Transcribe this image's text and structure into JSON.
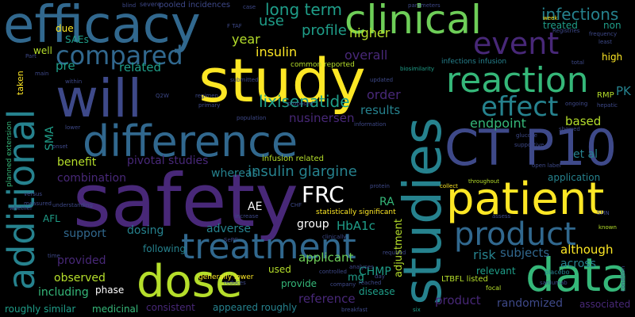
{
  "palette": {
    "yellow": "#fde725",
    "lime": "#b5de2b",
    "green": "#6ece58",
    "seagreen": "#35b779",
    "teal": "#1f9e89",
    "cyan": "#26828e",
    "blue": "#31688e",
    "indigo": "#3e4989",
    "purple": "#482878",
    "violet": "#440154"
  },
  "words": [
    {
      "text": "safety",
      "color": "purple"
    },
    {
      "text": "study",
      "color": "yellow"
    },
    {
      "text": "studies",
      "color": "cyan"
    },
    {
      "text": "efficacy",
      "color": "blue"
    },
    {
      "text": "will",
      "color": "indigo"
    },
    {
      "text": "difference",
      "color": "blue"
    },
    {
      "text": "patient",
      "color": "yellow"
    },
    {
      "text": "CT P10",
      "color": "indigo"
    },
    {
      "text": "clinical",
      "color": "green"
    },
    {
      "text": "dose",
      "color": "lime"
    },
    {
      "text": "data",
      "color": "seagreen"
    },
    {
      "text": "treatment",
      "color": "blue"
    },
    {
      "text": "additional",
      "color": "cyan"
    },
    {
      "text": "reaction",
      "color": "seagreen"
    },
    {
      "text": "event",
      "color": "purple"
    },
    {
      "text": "effect",
      "color": "cyan"
    },
    {
      "text": "product",
      "color": "blue"
    },
    {
      "text": "compared",
      "color": "blue"
    },
    {
      "text": "FRC",
      "color": "white"
    },
    {
      "text": "long term",
      "color": "teal"
    },
    {
      "text": "infections",
      "color": "cyan"
    },
    {
      "text": "lixisenatide",
      "color": "teal"
    },
    {
      "text": "insulin glargine",
      "color": "cyan"
    },
    {
      "text": "insulin",
      "color": "yellow"
    },
    {
      "text": "profile",
      "color": "teal"
    },
    {
      "text": "higher",
      "color": "lime"
    },
    {
      "text": "overall",
      "color": "purple"
    },
    {
      "text": "order",
      "color": "purple"
    },
    {
      "text": "year",
      "color": "lime"
    },
    {
      "text": "use",
      "color": "teal"
    },
    {
      "text": "pre",
      "color": "teal"
    },
    {
      "text": "related",
      "color": "teal"
    },
    {
      "text": "nusinersen",
      "color": "purple"
    },
    {
      "text": "results",
      "color": "cyan"
    },
    {
      "text": "endpoint",
      "color": "seagreen"
    },
    {
      "text": "based",
      "color": "lime"
    },
    {
      "text": "et al",
      "color": "cyan"
    },
    {
      "text": "PK",
      "color": "cyan"
    },
    {
      "text": "RMP",
      "color": "lime"
    },
    {
      "text": "treated",
      "color": "teal"
    },
    {
      "text": "non",
      "color": "teal"
    },
    {
      "text": "high",
      "color": "yellow"
    },
    {
      "text": "benefit",
      "color": "lime"
    },
    {
      "text": "pivotal studies",
      "color": "purple"
    },
    {
      "text": "whereas",
      "color": "cyan"
    },
    {
      "text": "combination",
      "color": "purple"
    },
    {
      "text": "SMA",
      "color": "teal"
    },
    {
      "text": "AE",
      "color": "white"
    },
    {
      "text": "adverse",
      "color": "cyan"
    },
    {
      "text": "group",
      "color": "white"
    },
    {
      "text": "HbA1c",
      "color": "teal"
    },
    {
      "text": "RA",
      "color": "seagreen"
    },
    {
      "text": "adjustment",
      "color": "lime"
    },
    {
      "text": "risk",
      "color": "cyan"
    },
    {
      "text": "subjects",
      "color": "blue"
    },
    {
      "text": "although",
      "color": "yellow"
    },
    {
      "text": "across",
      "color": "cyan"
    },
    {
      "text": "application",
      "color": "cyan"
    },
    {
      "text": "support",
      "color": "blue"
    },
    {
      "text": "dosing",
      "color": "cyan"
    },
    {
      "text": "provided",
      "color": "purple"
    },
    {
      "text": "following",
      "color": "cyan"
    },
    {
      "text": "observed",
      "color": "lime"
    },
    {
      "text": "including",
      "color": "seagreen"
    },
    {
      "text": "applicant",
      "color": "green"
    },
    {
      "text": "CHMP",
      "color": "teal"
    },
    {
      "text": "mg",
      "color": "teal"
    },
    {
      "text": "reference",
      "color": "purple"
    },
    {
      "text": "product",
      "color": "purple"
    },
    {
      "text": "randomized",
      "color": "indigo"
    },
    {
      "text": "associated",
      "color": "purple"
    },
    {
      "text": "relevant",
      "color": "teal"
    },
    {
      "text": "used",
      "color": "lime"
    },
    {
      "text": "provide",
      "color": "seagreen"
    },
    {
      "text": "disease",
      "color": "teal"
    },
    {
      "text": "roughly similar",
      "color": "teal"
    },
    {
      "text": "medicinal",
      "color": "seagreen"
    },
    {
      "text": "consistent",
      "color": "purple"
    },
    {
      "text": "appeared roughly",
      "color": "cyan"
    },
    {
      "text": "phase",
      "color": "white"
    },
    {
      "text": "AFL",
      "color": "teal"
    },
    {
      "text": "SAEs",
      "color": "teal"
    },
    {
      "text": "due",
      "color": "yellow"
    },
    {
      "text": "well",
      "color": "lime"
    },
    {
      "text": "taken",
      "color": "yellow"
    },
    {
      "text": "infusion related",
      "color": "lime"
    },
    {
      "text": "statistically significant",
      "color": "yellow"
    },
    {
      "text": "generally lower",
      "color": "yellow"
    },
    {
      "text": "LTBFL listed",
      "color": "lime"
    },
    {
      "text": "pooled incidences",
      "color": "indigo"
    },
    {
      "text": "severe",
      "color": "indigo"
    },
    {
      "text": "common reported",
      "color": "lime"
    },
    {
      "text": "infections infusion",
      "color": "cyan"
    },
    {
      "text": "biosimilarity",
      "color": "teal"
    },
    {
      "text": "parameters",
      "color": "indigo"
    },
    {
      "text": "Registries",
      "color": "indigo"
    },
    {
      "text": "week",
      "color": "yellow"
    },
    {
      "text": "total",
      "color": "indigo"
    },
    {
      "text": "frequency",
      "color": "indigo"
    },
    {
      "text": "least",
      "color": "indigo"
    },
    {
      "text": "primary",
      "color": "indigo"
    },
    {
      "text": "hepatic",
      "color": "indigo"
    },
    {
      "text": "supportive",
      "color": "indigo"
    },
    {
      "text": "glucose",
      "color": "indigo"
    },
    {
      "text": "open label",
      "color": "indigo"
    },
    {
      "text": "throughout",
      "color": "lime"
    },
    {
      "text": "collect",
      "color": "yellow"
    },
    {
      "text": "protein",
      "color": "indigo"
    },
    {
      "text": "assess",
      "color": "indigo"
    },
    {
      "text": "SMN",
      "color": "indigo"
    },
    {
      "text": "known",
      "color": "lime"
    },
    {
      "text": "placebo",
      "color": "cyan"
    },
    {
      "text": "focal",
      "color": "lime"
    },
    {
      "text": "six",
      "color": "teal"
    },
    {
      "text": "reduces",
      "color": "indigo"
    },
    {
      "text": "controlled",
      "color": "indigo"
    },
    {
      "text": "analyses",
      "color": "indigo"
    },
    {
      "text": "population",
      "color": "indigo"
    },
    {
      "text": "submitted",
      "color": "indigo"
    },
    {
      "text": "regimen",
      "color": "indigo"
    },
    {
      "text": "increase",
      "color": "indigo"
    },
    {
      "text": "clinically",
      "color": "indigo"
    },
    {
      "text": "understanding",
      "color": "indigo"
    },
    {
      "text": "measured",
      "color": "indigo"
    },
    {
      "text": "versus",
      "color": "indigo"
    },
    {
      "text": "whether",
      "color": "indigo"
    },
    {
      "text": "onset",
      "color": "indigo"
    },
    {
      "text": "lower",
      "color": "indigo"
    },
    {
      "text": "within",
      "color": "indigo"
    },
    {
      "text": "main",
      "color": "indigo"
    },
    {
      "text": "Part",
      "color": "indigo"
    },
    {
      "text": "time",
      "color": "indigo"
    },
    {
      "text": "breakfast",
      "color": "indigo"
    },
    {
      "text": "company",
      "color": "indigo"
    },
    {
      "text": "reached",
      "color": "indigo"
    },
    {
      "text": "day",
      "color": "indigo"
    },
    {
      "text": "required",
      "color": "indigo"
    },
    {
      "text": "information",
      "color": "indigo"
    },
    {
      "text": "updated",
      "color": "indigo"
    },
    {
      "text": "proposed",
      "color": "indigo"
    },
    {
      "text": "case",
      "color": "indigo"
    },
    {
      "text": "blind",
      "color": "indigo"
    },
    {
      "text": "F TAF",
      "color": "indigo"
    },
    {
      "text": "Q2W",
      "color": "indigo"
    },
    {
      "text": "CHF",
      "color": "indigo"
    },
    {
      "text": "SePC",
      "color": "indigo"
    },
    {
      "text": "planned extension",
      "color": "seagreen"
    },
    {
      "text": "condition",
      "color": "indigo"
    },
    {
      "text": "sarilumab",
      "color": "indigo"
    },
    {
      "text": "showed",
      "color": "indigo"
    },
    {
      "text": "ongoing",
      "color": "indigo"
    }
  ]
}
